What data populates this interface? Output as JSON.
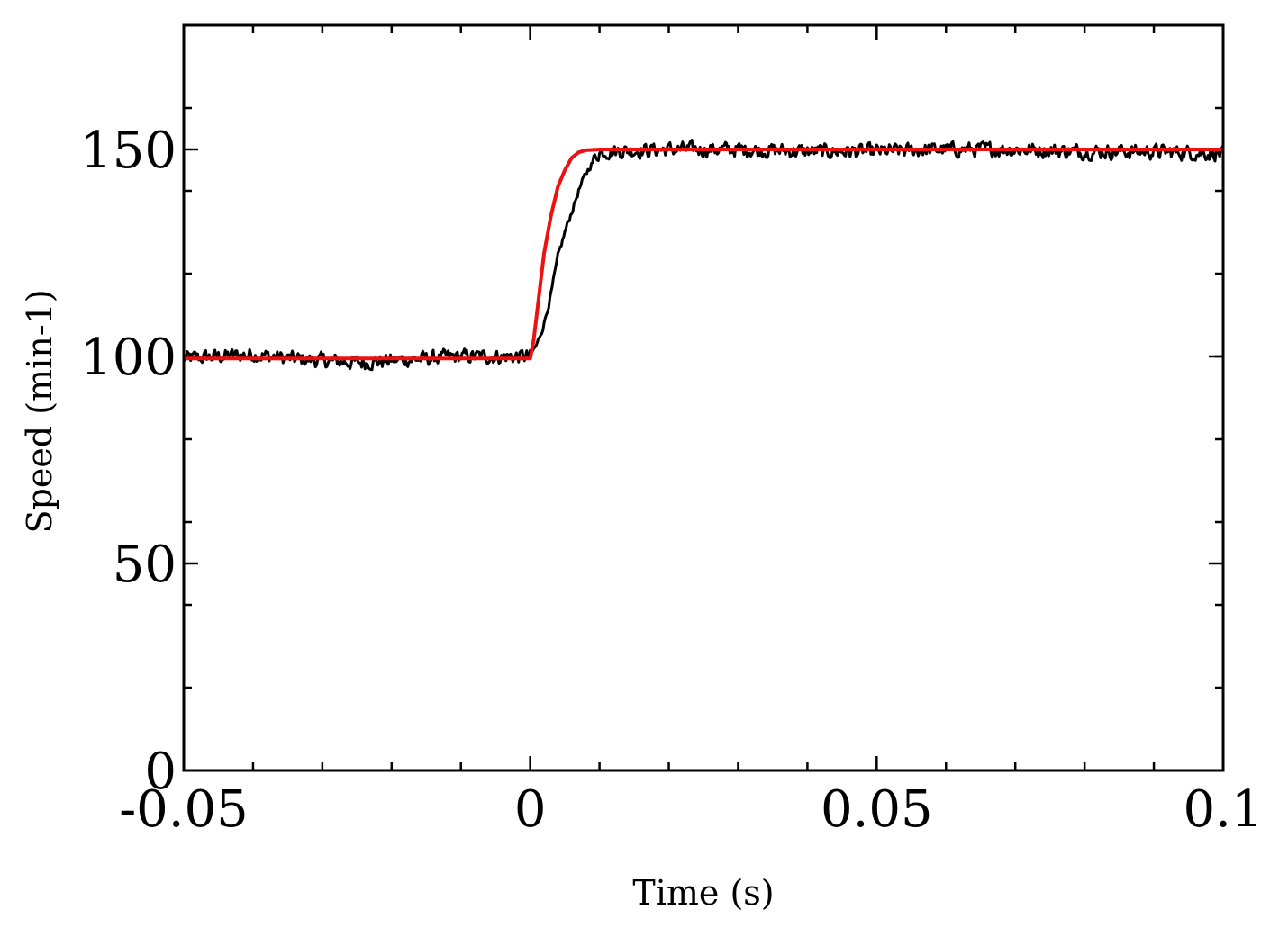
{
  "chart_data": {
    "type": "line",
    "title": "",
    "xlabel": "Time (s)",
    "ylabel": "Speed (min-1)",
    "xlim": [
      -0.05,
      0.1
    ],
    "ylim": [
      0,
      180
    ],
    "x_ticks": [
      -0.05,
      0,
      0.05,
      0.1
    ],
    "x_tick_labels": [
      "-0.05",
      "0",
      "0.05",
      "0.1"
    ],
    "y_ticks": [
      0,
      50,
      100,
      150
    ],
    "y_tick_labels": [
      "0",
      "50",
      "100",
      "150"
    ],
    "x_minor_step": 0.01,
    "y_minor_step": 20,
    "grid": false,
    "legend": "none",
    "series": [
      {
        "color": "#000000",
        "x": [
          -0.05,
          -0.045,
          -0.04,
          -0.035,
          -0.03,
          -0.025,
          -0.02,
          -0.015,
          -0.01,
          -0.005,
          0,
          0.001,
          0.002,
          0.003,
          0.004,
          0.005,
          0.006,
          0.007,
          0.008,
          0.009,
          0.01,
          0.02,
          0.03,
          0.04,
          0.05,
          0.06,
          0.07,
          0.08,
          0.09,
          0.1
        ],
        "values": [
          99.5,
          100,
          100.5,
          99.5,
          99,
          98.5,
          99,
          99.5,
          100,
          100,
          100,
          103,
          108,
          115,
          124,
          130,
          135,
          140,
          144,
          147,
          149.5,
          150,
          150,
          149.5,
          149.5,
          150,
          150,
          149.5,
          149.5,
          149
        ]
      },
      {
        "color": "#ee1111",
        "x": [
          -0.05,
          0,
          0.0005,
          0.001,
          0.0015,
          0.002,
          0.003,
          0.004,
          0.005,
          0.006,
          0.007,
          0.008,
          0.01,
          0.1
        ],
        "values": [
          99.5,
          99.5,
          104,
          111,
          118,
          125,
          134,
          141,
          145,
          148,
          149.3,
          149.8,
          150,
          150
        ]
      }
    ]
  }
}
